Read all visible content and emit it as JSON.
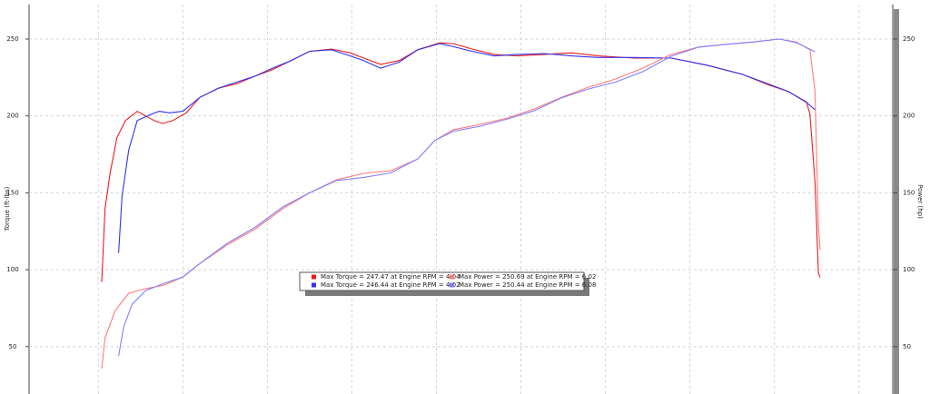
{
  "chart_data": {
    "type": "line",
    "y_label": "Torque (ft-lbs)",
    "y2_label": "Power (hp)",
    "xlim": [
      1.59,
      6.7
    ],
    "xticks": [
      2,
      2.5,
      3,
      3.5,
      4,
      4.5,
      5,
      5.5,
      6,
      6.5
    ],
    "ylim": [
      19.2,
      272.4
    ],
    "yticks": [
      50,
      100,
      150,
      200,
      250
    ],
    "y2lim": [
      19.2,
      272.4
    ],
    "y2ticks": [
      50,
      100,
      150,
      200,
      250
    ],
    "grid": true,
    "legend": "bottom-center",
    "series": [
      {
        "name": "Max Torque = 247.47 at Engine RPM = 4.04",
        "color": "#ee1c1c",
        "x": [
          2.02,
          2.04,
          2.07,
          2.11,
          2.16,
          2.23,
          2.28,
          2.33,
          2.38,
          2.44,
          2.52,
          2.6,
          2.71,
          2.82,
          2.93,
          3.03,
          3.14,
          3.25,
          3.38,
          3.49,
          3.57,
          3.67,
          3.78,
          3.89,
          4.02,
          4.1,
          4.21,
          4.34,
          4.48,
          4.64,
          4.8,
          4.96,
          5.17,
          5.39,
          5.6,
          5.81,
          5.97,
          6.08,
          6.19,
          6.21,
          6.24,
          6.26,
          6.27
        ],
        "values": [
          92,
          140,
          163,
          186,
          197,
          203,
          200,
          197,
          195,
          197,
          202,
          212,
          218,
          221,
          226,
          230,
          236,
          242,
          243.5,
          241,
          237.6,
          233.5,
          236,
          243,
          247.5,
          247,
          243.5,
          240,
          239,
          240,
          241,
          239,
          237.6,
          237.6,
          233,
          227,
          220,
          216,
          209,
          201,
          157,
          98,
          95
        ]
      },
      {
        "name": "Max Torque = 246.44 at Engine RPM = 4.02",
        "color": "#3333ee",
        "x": [
          2.12,
          2.14,
          2.18,
          2.23,
          2.31,
          2.36,
          2.42,
          2.5,
          2.6,
          2.71,
          2.82,
          2.93,
          3.03,
          3.14,
          3.25,
          3.38,
          3.49,
          3.57,
          3.67,
          3.78,
          3.89,
          4.02,
          4.1,
          4.21,
          4.34,
          4.48,
          4.64,
          4.8,
          4.96,
          5.17,
          5.39,
          5.6,
          5.81,
          5.97,
          6.08,
          6.19,
          6.24
        ],
        "values": [
          111,
          148,
          178,
          197,
          201,
          203,
          202,
          203,
          212,
          218,
          222,
          226,
          231,
          236,
          242,
          243,
          239,
          236,
          231,
          235,
          243,
          247,
          245,
          242,
          239,
          240,
          240.5,
          239,
          238,
          238,
          237.6,
          233,
          227,
          220.5,
          216,
          208.7,
          204
        ]
      },
      {
        "name": "Max Power = 250.69 at Engine RPM = 6.02",
        "color": "#ff7a7a",
        "x": [
          2.02,
          2.04,
          2.1,
          2.18,
          2.28,
          2.39,
          2.5,
          2.6,
          2.76,
          2.93,
          3.09,
          3.25,
          3.41,
          3.57,
          3.73,
          3.89,
          3.99,
          4.1,
          4.26,
          4.42,
          4.58,
          4.74,
          4.9,
          5.06,
          5.22,
          5.39,
          5.55,
          5.71,
          5.87,
          6.03,
          6.13,
          6.21,
          6.24,
          6.26,
          6.27
        ],
        "values": [
          35.7,
          55.8,
          73.5,
          84.7,
          87.7,
          90,
          95.3,
          104,
          116,
          126.6,
          139.6,
          150,
          158.5,
          162.6,
          164.4,
          172,
          184,
          191,
          194.5,
          198.6,
          204.5,
          212,
          218.7,
          224,
          231,
          240,
          244.7,
          246.5,
          248,
          250,
          248,
          243,
          216,
          128,
          113
        ]
      },
      {
        "name": "Max Power = 250.44 at Engine RPM = 6.08",
        "color": "#7f7fff",
        "x": [
          2.12,
          2.15,
          2.2,
          2.28,
          2.39,
          2.5,
          2.6,
          2.76,
          2.93,
          3.09,
          3.25,
          3.41,
          3.57,
          3.73,
          3.89,
          3.99,
          4.1,
          4.26,
          4.42,
          4.58,
          4.74,
          4.9,
          5.06,
          5.22,
          5.39,
          5.55,
          5.71,
          5.87,
          6.03,
          6.13,
          6.24
        ],
        "values": [
          44,
          62.9,
          77.6,
          86.4,
          91.2,
          95.3,
          104,
          117,
          127.8,
          140.8,
          150,
          158,
          160,
          163,
          172,
          184,
          190,
          193.3,
          198,
          203.4,
          211.7,
          217.5,
          222,
          228.7,
          238.8,
          244.7,
          246.5,
          248,
          250,
          247.6,
          241.7
        ]
      }
    ]
  }
}
